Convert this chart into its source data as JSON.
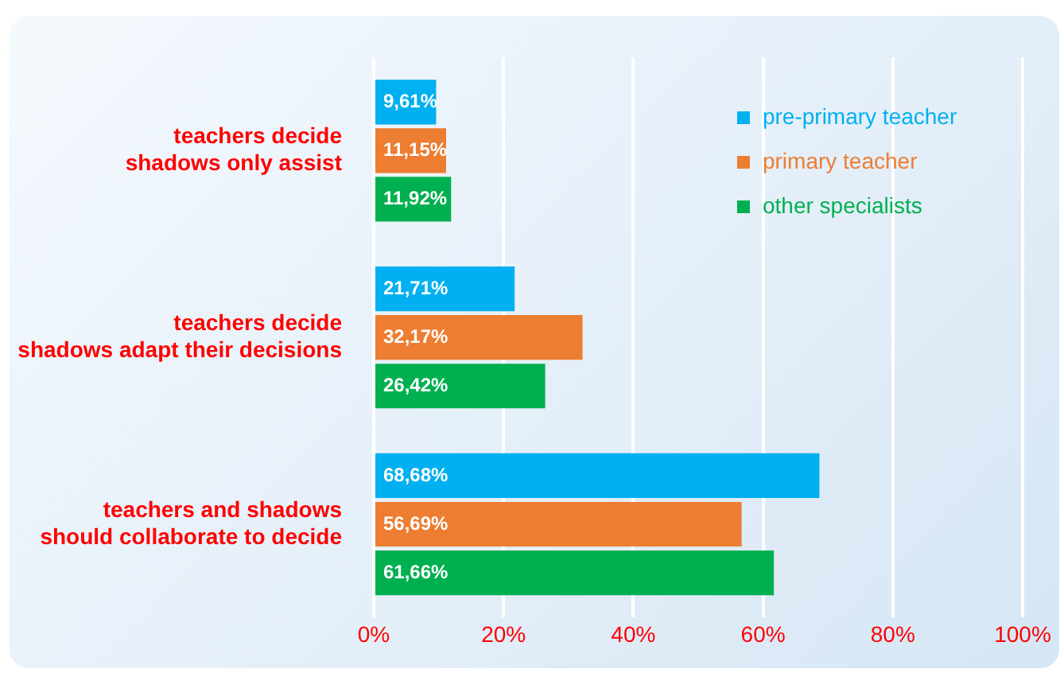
{
  "chart_data": {
    "type": "bar",
    "orientation": "horizontal",
    "categories": [
      "teachers decide\nshadows only assist",
      "teachers decide\nshadows adapt their decisions",
      "teachers and shadows\nshould collaborate to decide"
    ],
    "series": [
      {
        "name": "pre-primary teacher",
        "color": "#00b0f0",
        "values": [
          9.61,
          21.71,
          68.68
        ],
        "value_labels": [
          "9,61%",
          "21,71%",
          "68,68%"
        ]
      },
      {
        "name": "primary teacher",
        "color": "#ed7d31",
        "values": [
          11.15,
          32.17,
          56.69
        ],
        "value_labels": [
          "11,15%",
          "32,17%",
          "56,69%"
        ]
      },
      {
        "name": "other specialists",
        "color": "#00b050",
        "values": [
          11.92,
          26.42,
          61.66
        ],
        "value_labels": [
          "11,92%",
          "26,42%",
          "61,66%"
        ]
      }
    ],
    "xlim": [
      0,
      100
    ],
    "xticks": [
      {
        "value": 0,
        "label": "0%"
      },
      {
        "value": 20,
        "label": "20%"
      },
      {
        "value": 40,
        "label": "40%"
      },
      {
        "value": 60,
        "label": "60%"
      },
      {
        "value": 80,
        "label": "80%"
      },
      {
        "value": 100,
        "label": "100%"
      }
    ],
    "grid": "x",
    "legend": "top right"
  }
}
